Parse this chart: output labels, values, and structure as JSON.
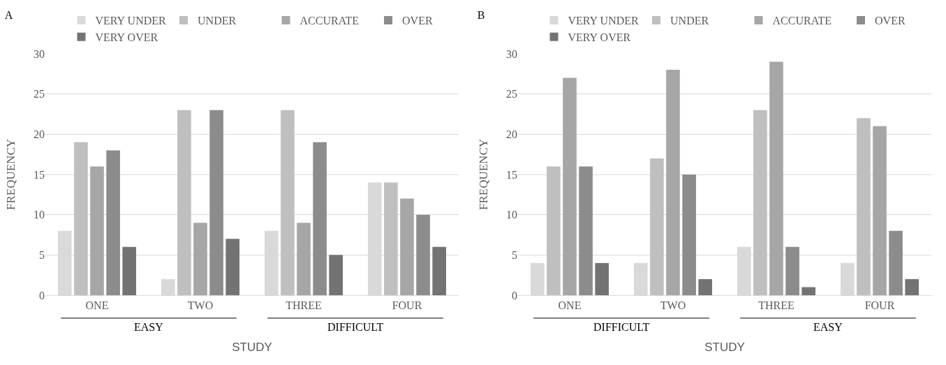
{
  "chart_data": [
    {
      "type": "bar",
      "title": "A",
      "xlabel": "STUDY",
      "ylabel": "FREQUENCY",
      "categories": [
        "ONE",
        "TWO",
        "THREE",
        "FOUR"
      ],
      "annotations": [
        "EASY",
        "DIFFICULT"
      ],
      "ylim": [
        0,
        30
      ],
      "yticks": [
        0,
        5,
        10,
        15,
        20,
        25,
        30
      ],
      "grid": "y",
      "legend": "top",
      "series": [
        {
          "name": "VERY UNDER",
          "color": "#d9d9d9",
          "values": [
            8,
            2,
            8,
            14
          ]
        },
        {
          "name": "UNDER",
          "color": "#bfbfbf",
          "values": [
            19,
            23,
            23,
            14
          ]
        },
        {
          "name": "ACCURATE",
          "color": "#a6a6a6",
          "values": [
            16,
            9,
            9,
            12
          ]
        },
        {
          "name": "OVER",
          "color": "#8c8c8c",
          "values": [
            18,
            23,
            19,
            10
          ]
        },
        {
          "name": "VERY OVER",
          "color": "#737373",
          "values": [
            6,
            7,
            5,
            6
          ]
        }
      ]
    },
    {
      "type": "bar",
      "title": "B",
      "xlabel": "STUDY",
      "ylabel": "FREQUENCY",
      "categories": [
        "ONE",
        "TWO",
        "THREE",
        "FOUR"
      ],
      "annotations": [
        "DIFFICULT",
        "EASY"
      ],
      "ylim": [
        0,
        30
      ],
      "yticks": [
        0,
        5,
        10,
        15,
        20,
        25,
        30
      ],
      "grid": "y",
      "legend": "top",
      "series": [
        {
          "name": "VERY UNDER",
          "color": "#d9d9d9",
          "values": [
            4,
            4,
            6,
            4
          ]
        },
        {
          "name": "UNDER",
          "color": "#bfbfbf",
          "values": [
            16,
            17,
            23,
            22
          ]
        },
        {
          "name": "ACCURATE",
          "color": "#a6a6a6",
          "values": [
            27,
            28,
            29,
            21
          ]
        },
        {
          "name": "OVER",
          "color": "#8c8c8c",
          "values": [
            16,
            15,
            6,
            8
          ]
        },
        {
          "name": "VERY OVER",
          "color": "#737373",
          "values": [
            4,
            2,
            1,
            2
          ]
        }
      ]
    }
  ]
}
